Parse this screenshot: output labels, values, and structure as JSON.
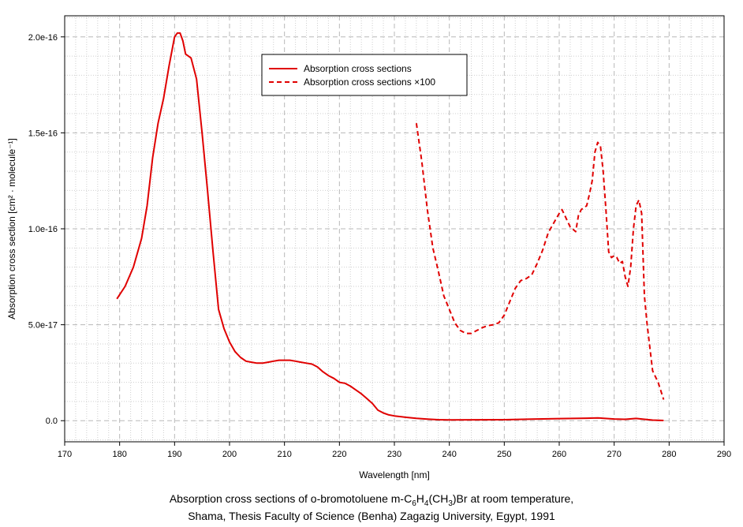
{
  "chart_data": {
    "type": "line",
    "xlabel": "Wavelength [nm]",
    "ylabel": "Absorption cross section [cm² · molecule⁻¹]",
    "xlim": [
      170,
      290
    ],
    "ylim": [
      -1.1e-17,
      2.11e-16
    ],
    "x_ticks": [
      170,
      180,
      190,
      200,
      210,
      220,
      230,
      240,
      250,
      260,
      270,
      280,
      290
    ],
    "x_tick_labels": [
      "170",
      "180",
      "190",
      "200",
      "210",
      "220",
      "230",
      "240",
      "250",
      "260",
      "270",
      "280",
      "290"
    ],
    "y_ticks": [
      0,
      5e-17,
      1e-16,
      1.5e-16,
      2e-16
    ],
    "y_tick_labels": [
      "0.0",
      "5.0e-17",
      "1.0e-16",
      "1.5e-16",
      "2.0e-16"
    ],
    "grid": true,
    "legend_position": "top-center",
    "color": "#e00000",
    "series": [
      {
        "name": "Absorption cross sections",
        "style": "solid",
        "x": [
          179.5,
          181,
          182.5,
          184,
          185,
          186,
          187,
          188,
          189,
          190,
          190.5,
          191,
          191.5,
          192,
          192.5,
          193,
          194,
          195,
          196,
          197,
          198,
          199,
          200,
          201,
          202,
          203,
          204,
          205,
          206,
          207,
          208,
          209,
          210,
          211,
          212,
          213,
          214,
          215,
          216,
          217,
          218,
          219,
          220,
          221,
          222,
          223,
          224,
          225,
          226,
          227,
          228,
          229,
          230,
          232,
          234,
          236,
          238,
          240,
          245,
          250,
          255,
          260,
          265,
          267,
          270,
          272,
          274,
          275,
          277,
          279
        ],
        "y": [
          6.35e-17,
          7e-17,
          8e-17,
          9.5e-17,
          1.12e-16,
          1.37e-16,
          1.55e-16,
          1.68e-16,
          1.85e-16,
          2e-16,
          2.02e-16,
          2.02e-16,
          1.98e-16,
          1.91e-16,
          1.9e-16,
          1.89e-16,
          1.78e-16,
          1.5e-16,
          1.2e-16,
          8.8e-17,
          5.8e-17,
          4.8e-17,
          4.1e-17,
          3.6e-17,
          3.3e-17,
          3.1e-17,
          3.05e-17,
          3e-17,
          3e-17,
          3.05e-17,
          3.1e-17,
          3.15e-17,
          3.15e-17,
          3.15e-17,
          3.1e-17,
          3.05e-17,
          3e-17,
          2.95e-17,
          2.8e-17,
          2.55e-17,
          2.35e-17,
          2.2e-17,
          2e-17,
          1.95e-17,
          1.8e-17,
          1.6e-17,
          1.4e-17,
          1.15e-17,
          9e-18,
          5.5e-18,
          4e-18,
          3e-18,
          2.5e-18,
          1.8e-18,
          1.2e-18,
          8e-19,
          5e-19,
          4e-19,
          4.5e-19,
          5e-19,
          8e-19,
          1.1e-18,
          1.3e-18,
          1.45e-18,
          9e-19,
          7e-19,
          1.15e-18,
          9e-19,
          3e-19,
          1.1e-19
        ]
      },
      {
        "name": "Absorption cross sections ×100",
        "style": "dashed",
        "x": [
          234,
          235,
          236,
          237,
          238,
          239,
          240,
          241,
          242,
          243,
          244,
          245,
          246,
          247,
          248,
          249,
          250,
          251,
          252,
          253,
          254,
          255,
          256,
          257,
          258,
          259,
          260,
          260.5,
          261,
          262,
          263,
          263.5,
          264,
          265,
          265.5,
          266,
          266.5,
          267,
          267.5,
          268,
          268.5,
          269,
          269.5,
          270,
          270.5,
          271,
          271.5,
          272,
          272.5,
          273,
          273.5,
          274,
          274.5,
          275,
          275.5,
          276,
          277,
          278,
          279
        ],
        "y": [
          1.55e-16,
          1.35e-16,
          1.1e-16,
          9e-17,
          7.8e-17,
          6.5e-17,
          5.8e-17,
          5.1e-17,
          4.7e-17,
          4.55e-17,
          4.55e-17,
          4.7e-17,
          4.85e-17,
          4.95e-17,
          5e-17,
          5.1e-17,
          5.5e-17,
          6.2e-17,
          6.9e-17,
          7.3e-17,
          7.4e-17,
          7.6e-17,
          8.2e-17,
          8.9e-17,
          9.8e-17,
          1.03e-16,
          1.08e-16,
          1.1e-16,
          1.07e-16,
          1.01e-16,
          9.85e-17,
          1.07e-16,
          1.1e-16,
          1.12e-16,
          1.18e-16,
          1.25e-16,
          1.4e-16,
          1.45e-16,
          1.43e-16,
          1.3e-16,
          1.1e-16,
          8.8e-17,
          8.5e-17,
          8.6e-17,
          8.5e-17,
          8.2e-17,
          8.3e-17,
          7.5e-17,
          7e-17,
          8e-17,
          1e-16,
          1.12e-16,
          1.15e-16,
          1.08e-16,
          6.5e-17,
          5e-17,
          2.6e-17,
          2e-17,
          1.1e-17
        ]
      }
    ]
  },
  "caption": {
    "line1_pre": "Absorption cross sections of o-bromotoluene m-C",
    "line1_sub1": "6",
    "line1_mid1": "H",
    "line1_sub2": "4",
    "line1_mid2": "(CH",
    "line1_sub3": "3",
    "line1_post": ")Br at room temperature,",
    "line2": "Shama, Thesis Faculty of Science (Benha) Zagazig University, Egypt, 1991"
  }
}
